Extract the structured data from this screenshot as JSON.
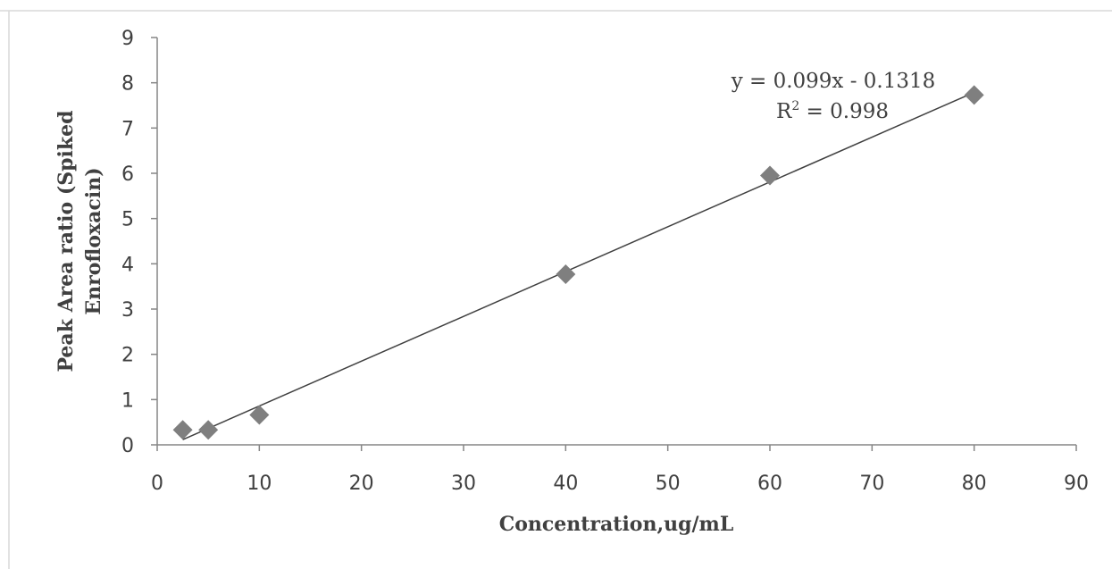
{
  "chart_data": {
    "type": "scatter",
    "title": "",
    "xlabel": "Concentration,ug/mL",
    "ylabel": {
      "line1": "Peak Area ratio (Spiked",
      "line2": "Enrofloxacin)"
    },
    "xlim": [
      0,
      90
    ],
    "ylim": [
      0,
      9
    ],
    "x_ticks": [
      0,
      10,
      20,
      30,
      40,
      50,
      60,
      70,
      80,
      90
    ],
    "y_ticks": [
      0,
      1,
      2,
      3,
      4,
      5,
      6,
      7,
      8,
      9
    ],
    "grid": false,
    "legend": "none",
    "series": [
      {
        "marker": "diamond",
        "color": "#7f7f7f",
        "points": [
          {
            "x": 2.5,
            "y": 0.33
          },
          {
            "x": 5,
            "y": 0.33
          },
          {
            "x": 10,
            "y": 0.66
          },
          {
            "x": 40,
            "y": 3.77
          },
          {
            "x": 60,
            "y": 5.95
          },
          {
            "x": 80,
            "y": 7.73
          }
        ]
      }
    ],
    "trendline": {
      "type": "linear",
      "slope": 0.099,
      "intercept": -0.1318,
      "x_range": [
        2.5,
        80
      ],
      "color": "#404040",
      "equation": "y = 0.099x - 0.1318",
      "r2_label": "R",
      "r2_superscript": "2",
      "r2_value": " = 0.998"
    },
    "colors": {
      "axis": "#868686",
      "text": "#404040",
      "frame": "#d9d9d9"
    }
  }
}
